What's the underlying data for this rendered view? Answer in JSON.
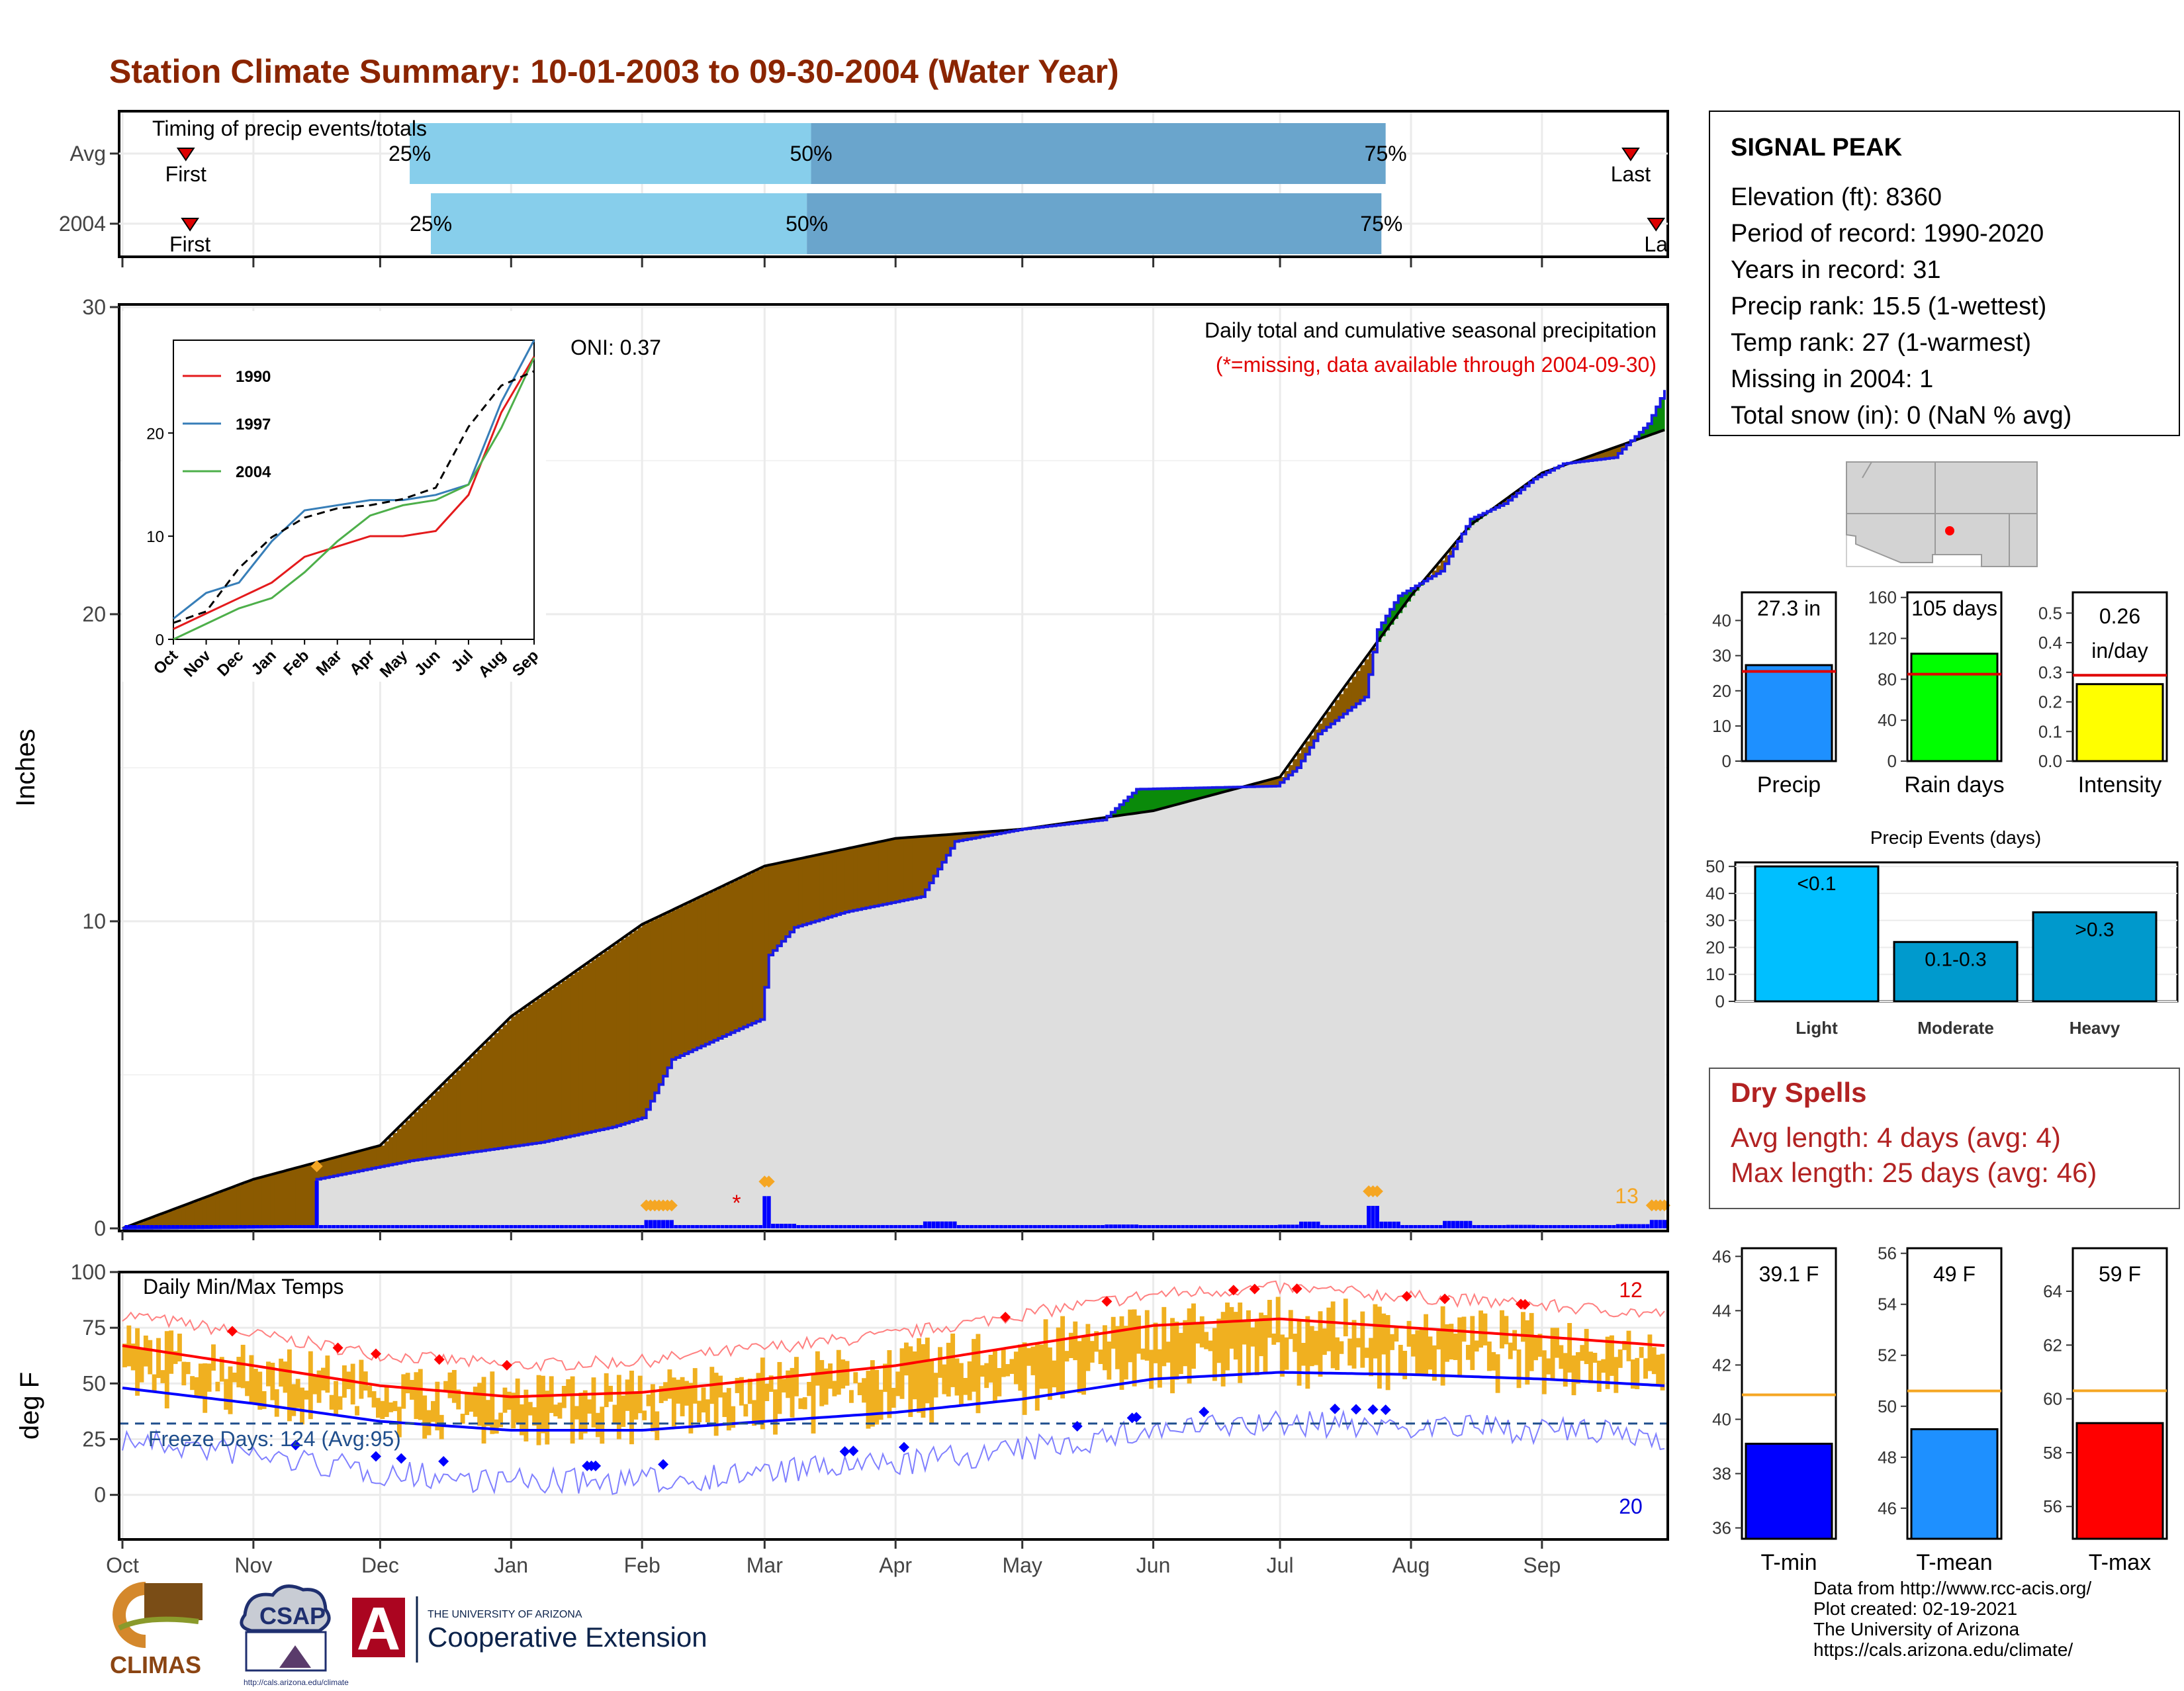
{
  "title": "Station Climate Summary: 10-01-2003 to 09-30-2004 (Water Year)",
  "timing": {
    "title": "Timing of precip events/totals",
    "rows": [
      {
        "label": "Avg",
        "first_label": "First",
        "last_label": "Last",
        "p25_date": "2003-12-08",
        "p50_date": "2004-03-12",
        "p75_date": "2004-07-26",
        "first_date": "2003-10-16",
        "last_date": "2004-09-22"
      },
      {
        "label": "2004",
        "first_label": "First",
        "last_label": "La",
        "p25_date": "2003-12-13",
        "p50_date": "2004-03-11",
        "p75_date": "2004-07-25",
        "first_date": "2003-10-17",
        "last_date": "2004-09-28"
      }
    ],
    "pct_labels": [
      "25%",
      "50%",
      "75%"
    ],
    "colors": {
      "light": "#87ceeb",
      "dark": "#6aa5cc",
      "marker": "#dd0000"
    }
  },
  "precip_panel": {
    "ylabel": "Inches",
    "yticks": [
      "0",
      "10",
      "20",
      "30"
    ],
    "oni": "ONI: 0.37",
    "subtitle": "Daily total and cumulative seasonal precipitation",
    "missing_note": "(*=missing, data available through 2004-09-30)",
    "corner_label": "13"
  },
  "inset": {
    "legend": [
      "1990",
      "1997",
      "2004"
    ],
    "colors": [
      "#e41a1c",
      "#377eb8",
      "#4daf4a"
    ],
    "yticks": [
      "0",
      "10",
      "20"
    ],
    "months": [
      "Oct",
      "Nov",
      "Dec",
      "Jan",
      "Feb",
      "Mar",
      "Apr",
      "May",
      "Jun",
      "Jul",
      "Aug",
      "Sep"
    ]
  },
  "temp_panel": {
    "ylabel": "deg F",
    "title": "Daily Min/Max Temps",
    "yticks": [
      "0",
      "25",
      "50",
      "75",
      "100"
    ],
    "freeze": "Freeze Days: 124 (Avg:95)",
    "top_right": "12",
    "bottom_right": "20"
  },
  "months": [
    "Oct",
    "Nov",
    "Dec",
    "Jan",
    "Feb",
    "Mar",
    "Apr",
    "May",
    "Jun",
    "Jul",
    "Aug",
    "Sep"
  ],
  "station": {
    "name": "SIGNAL PEAK",
    "lines": [
      "Elevation (ft): 8360",
      "Period of record: 1990-2020",
      "Years in record: 31",
      "Precip rank: 15.5 (1-wettest)",
      "Temp rank: 27 (1-warmest)",
      "Missing in 2004: 1",
      "Total snow (in): 0 (NaN % avg)"
    ]
  },
  "map": {
    "point_color": "#ff0000"
  },
  "summary_bars": [
    {
      "label": "Precip",
      "value_label": "27.3 in",
      "value": 27.3,
      "avg": 25.5,
      "ymax": 48,
      "yticks": [
        "0",
        "10",
        "20",
        "30",
        "40"
      ],
      "color": "#1e90ff"
    },
    {
      "label": "Rain days",
      "value_label": "105 days",
      "value": 105,
      "avg": 85,
      "ymax": 165,
      "yticks": [
        "0",
        "40",
        "80",
        "120",
        "160"
      ],
      "color": "#00ff00"
    },
    {
      "label": "Intensity",
      "value_label": [
        "0.26",
        "in/day"
      ],
      "value": 0.26,
      "avg": 0.29,
      "ymax": 0.57,
      "yticks": [
        "0.0",
        "0.1",
        "0.2",
        "0.3",
        "0.4",
        "0.5"
      ],
      "color": "#ffff00"
    }
  ],
  "events": {
    "title": "Precip Events (days)",
    "yticks": [
      "0",
      "10",
      "20",
      "30",
      "40",
      "50"
    ],
    "bars": [
      {
        "category": "Light",
        "label": "<0.1",
        "value": 50,
        "color": "#00bfff"
      },
      {
        "category": "Moderate",
        "label": "0.1-0.3",
        "value": 22,
        "color": "#009acd"
      },
      {
        "category": "Heavy",
        "label": ">0.3",
        "value": 33,
        "color": "#0099cc"
      }
    ]
  },
  "dry": {
    "title": "Dry Spells",
    "lines": [
      "Avg length: 4 days (avg: 4)",
      "Max length: 25 days (avg: 46)"
    ]
  },
  "temp_bars": [
    {
      "label": "T-min",
      "value_label": "39.1 F",
      "value": 39.1,
      "avg": 40.9,
      "ymin": 35.6,
      "ymax": 46.3,
      "ticks": [
        36,
        38,
        40,
        42,
        44,
        46
      ],
      "color": "#0000ff"
    },
    {
      "label": "T-mean",
      "value_label": "49 F",
      "value": 49.1,
      "avg": 50.6,
      "ymin": 44.8,
      "ymax": 56.2,
      "ticks": [
        46,
        48,
        50,
        52,
        54,
        56
      ],
      "color": "#1e90ff"
    },
    {
      "label": "T-max",
      "value_label": "59 F",
      "value": 59.1,
      "avg": 60.3,
      "ymin": 54.8,
      "ymax": 65.6,
      "ticks": [
        56,
        58,
        60,
        62,
        64
      ],
      "color": "#ff0000"
    }
  ],
  "credits": [
    "Data from http://www.rcc-acis.org/",
    "Plot created: 02-19-2021",
    "The University of Arizona",
    "https://cals.arizona.edu/climate/"
  ],
  "logos": {
    "climas": "CLIMAS",
    "csap": "CSAP",
    "csap_url": "http://cals.arizona.edu/climate",
    "ua_small": "THE UNIVERSITY OF ARIZONA",
    "ua_big": "Cooperative Extension",
    "ua_letter": "A"
  },
  "chart_data": [
    {
      "type": "area",
      "title": "Daily total and cumulative seasonal precipitation",
      "ylabel": "Inches",
      "ylim": [
        0,
        30
      ],
      "x_range": [
        "2003-10-01",
        "2004-09-30"
      ],
      "series": [
        {
          "name": "2004",
          "points": [
            [
              "2003-10-01",
              0
            ],
            [
              "2003-11-15",
              0.05
            ],
            [
              "2003-11-16",
              1.6
            ],
            [
              "2003-12-08",
              2.2
            ],
            [
              "2004-01-08",
              2.8
            ],
            [
              "2004-01-25",
              3.3
            ],
            [
              "2004-02-01",
              3.6
            ],
            [
              "2004-02-08",
              5.5
            ],
            [
              "2004-02-24",
              6.5
            ],
            [
              "2004-02-29",
              6.8
            ],
            [
              "2004-03-02",
              8.9
            ],
            [
              "2004-03-08",
              9.8
            ],
            [
              "2004-03-20",
              10.3
            ],
            [
              "2004-04-07",
              10.8
            ],
            [
              "2004-04-15",
              12.6
            ],
            [
              "2004-05-01",
              13.0
            ],
            [
              "2004-05-20",
              13.3
            ],
            [
              "2004-05-28",
              14.3
            ],
            [
              "2004-06-30",
              14.4
            ],
            [
              "2004-07-05",
              15.0
            ],
            [
              "2004-07-10",
              16.1
            ],
            [
              "2004-07-21",
              17.3
            ],
            [
              "2004-07-24",
              19.5
            ],
            [
              "2004-07-29",
              20.6
            ],
            [
              "2004-08-08",
              21.4
            ],
            [
              "2004-08-15",
              23.1
            ],
            [
              "2004-08-23",
              23.6
            ],
            [
              "2004-08-30",
              24.4
            ],
            [
              "2004-09-06",
              24.9
            ],
            [
              "2004-09-18",
              25.1
            ],
            [
              "2004-09-26",
              26.2
            ],
            [
              "2004-09-30",
              27.3
            ]
          ]
        },
        {
          "name": "Avg",
          "points": [
            [
              "2003-10-01",
              0
            ],
            [
              "2003-11-01",
              1.6
            ],
            [
              "2003-12-01",
              2.7
            ],
            [
              "2004-01-01",
              6.9
            ],
            [
              "2004-02-01",
              9.9
            ],
            [
              "2004-03-01",
              11.8
            ],
            [
              "2004-04-01",
              12.7
            ],
            [
              "2004-05-01",
              13.0
            ],
            [
              "2004-06-01",
              13.6
            ],
            [
              "2004-07-01",
              14.7
            ],
            [
              "2004-07-15",
              17.4
            ],
            [
              "2004-08-01",
              20.6
            ],
            [
              "2004-08-15",
              22.9
            ],
            [
              "2004-09-01",
              24.6
            ],
            [
              "2004-09-30",
              26.0
            ]
          ]
        }
      ]
    },
    {
      "type": "line",
      "ylim": [
        0,
        29
      ],
      "categories": [
        "Oct",
        "Nov",
        "Dec",
        "Jan",
        "Feb",
        "Mar",
        "Apr",
        "May",
        "Jun",
        "Jul",
        "Aug",
        "Sep"
      ],
      "series": [
        {
          "name": "1990",
          "values": [
            1,
            2.5,
            4,
            5.5,
            8,
            9,
            10,
            10,
            10.5,
            14,
            22,
            27.4
          ]
        },
        {
          "name": "1997",
          "values": [
            2,
            4.5,
            5.5,
            9.5,
            12.5,
            13,
            13.5,
            13.5,
            14,
            15,
            23,
            29
          ]
        },
        {
          "name": "2004",
          "values": [
            0,
            1.5,
            3,
            4,
            6.5,
            9.5,
            12,
            13,
            13.5,
            15,
            20.5,
            27.3
          ]
        },
        {
          "name": "Avg",
          "values": [
            1.6,
            2.7,
            6.9,
            9.9,
            11.8,
            12.7,
            13,
            13.6,
            14.7,
            20.6,
            24.6,
            26
          ]
        }
      ]
    },
    {
      "type": "line",
      "title": "Daily Min/Max Temps",
      "ylabel": "deg F",
      "ylim": [
        -20,
        100
      ],
      "freeze_line": 32,
      "series": [
        {
          "name": "Avg Tmax",
          "points": [
            [
              "2003-10-01",
              67
            ],
            [
              "2003-11-01",
              58
            ],
            [
              "2003-12-01",
              49
            ],
            [
              "2004-01-01",
              44
            ],
            [
              "2004-02-01",
              46
            ],
            [
              "2004-03-01",
              52
            ],
            [
              "2004-04-01",
              58
            ],
            [
              "2004-05-01",
              67
            ],
            [
              "2004-06-01",
              76
            ],
            [
              "2004-07-01",
              79
            ],
            [
              "2004-08-01",
              75
            ],
            [
              "2004-09-01",
              71
            ],
            [
              "2004-09-30",
              67
            ]
          ]
        },
        {
          "name": "Avg Tmin",
          "points": [
            [
              "2003-10-01",
              48
            ],
            [
              "2003-11-01",
              41
            ],
            [
              "2003-12-01",
              33
            ],
            [
              "2004-01-01",
              29
            ],
            [
              "2004-02-01",
              29
            ],
            [
              "2004-03-01",
              33
            ],
            [
              "2004-04-01",
              37
            ],
            [
              "2004-05-01",
              43
            ],
            [
              "2004-06-01",
              52
            ],
            [
              "2004-07-01",
              55
            ],
            [
              "2004-08-01",
              54
            ],
            [
              "2004-09-01",
              52
            ],
            [
              "2004-09-30",
              49
            ]
          ]
        }
      ]
    }
  ]
}
